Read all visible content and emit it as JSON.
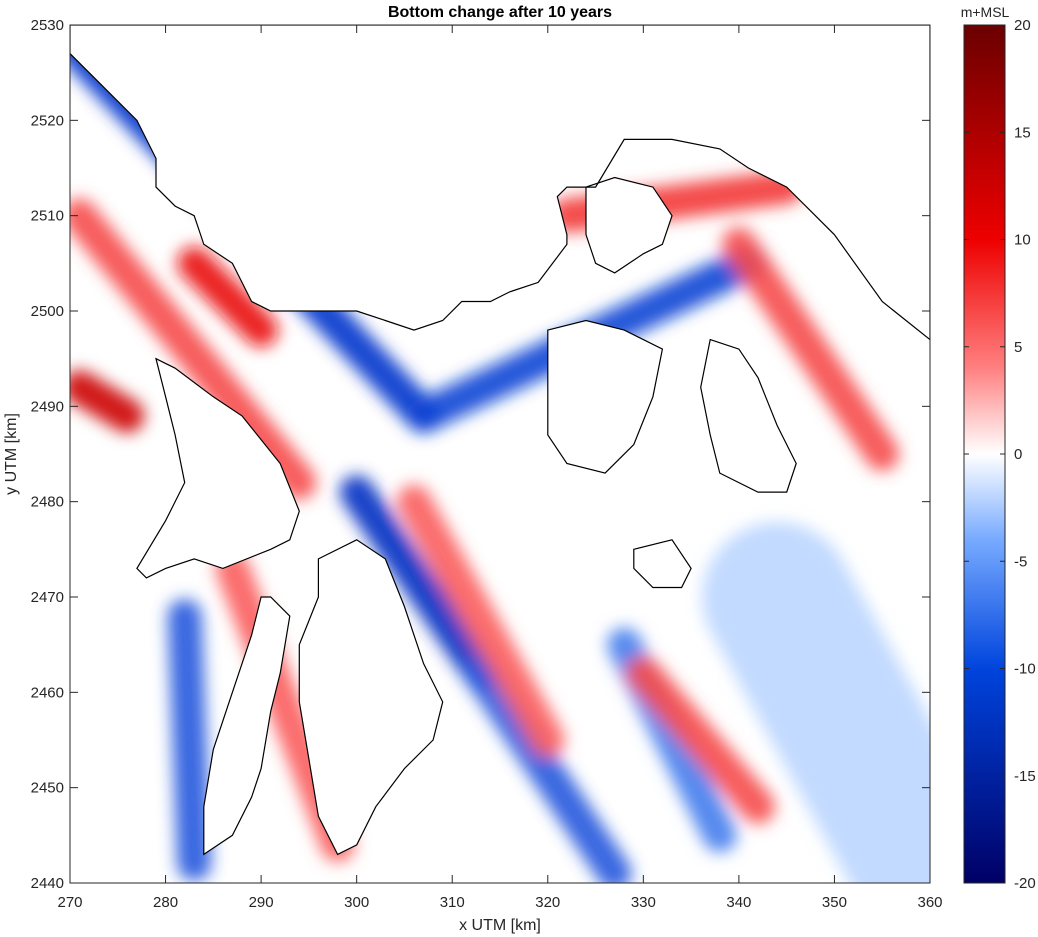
{
  "chart_data": {
    "type": "heatmap",
    "title": "Bottom change after 10 years",
    "xlabel": "x UTM [km]",
    "ylabel": "y UTM [km]",
    "xlim": [
      270,
      360
    ],
    "ylim": [
      2440,
      2530
    ],
    "xticks": [
      "270",
      "280",
      "290",
      "300",
      "310",
      "320",
      "330",
      "340",
      "350",
      "360"
    ],
    "yticks": [
      "2440",
      "2450",
      "2460",
      "2470",
      "2480",
      "2490",
      "2500",
      "2510",
      "2520",
      "2530"
    ],
    "colorbar": {
      "unit": "m+MSL",
      "range": [
        -20,
        20
      ],
      "ticks": [
        "-20",
        "-15",
        "-10",
        "-5",
        "0",
        "5",
        "10",
        "15",
        "20"
      ],
      "colors": {
        "min": "#000066",
        "low": "#0033cc",
        "mid_low": "#66a3ff",
        "zero": "#ffffff",
        "mid_high": "#ff7070",
        "high": "#e60000",
        "max": "#6b0000"
      }
    },
    "features": [
      {
        "kind": "deepening",
        "sign": -1,
        "x": [
          270,
          307
        ],
        "y": [
          2528,
          2489
        ],
        "magnitude": 10
      },
      {
        "kind": "deepening",
        "sign": -1,
        "x": [
          307,
          341
        ],
        "y": [
          2489,
          2505
        ],
        "magnitude": 9
      },
      {
        "kind": "deepening",
        "sign": -1,
        "x": [
          300,
          313
        ],
        "y": [
          2481,
          2462
        ],
        "magnitude": 11
      },
      {
        "kind": "deepening",
        "sign": -1,
        "x": [
          313,
          327
        ],
        "y": [
          2462,
          2441
        ],
        "magnitude": 8
      },
      {
        "kind": "deepening",
        "sign": -1,
        "x": [
          282,
          283
        ],
        "y": [
          2468,
          2442
        ],
        "magnitude": 8
      },
      {
        "kind": "deepening",
        "sign": -1,
        "x": [
          328,
          338
        ],
        "y": [
          2465,
          2445
        ],
        "magnitude": 6
      },
      {
        "kind": "accretion",
        "sign": 1,
        "x": [
          271,
          294
        ],
        "y": [
          2510,
          2482
        ],
        "magnitude": 6
      },
      {
        "kind": "accretion",
        "sign": 1,
        "x": [
          283,
          290
        ],
        "y": [
          2505,
          2498
        ],
        "magnitude": 9
      },
      {
        "kind": "accretion",
        "sign": 1,
        "x": [
          322,
          345
        ],
        "y": [
          2510,
          2513
        ],
        "magnitude": 7
      },
      {
        "kind": "accretion",
        "sign": 1,
        "x": [
          340,
          355
        ],
        "y": [
          2507,
          2485
        ],
        "magnitude": 6
      },
      {
        "kind": "accretion",
        "sign": 1,
        "x": [
          330,
          342
        ],
        "y": [
          2462,
          2448
        ],
        "magnitude": 6
      },
      {
        "kind": "accretion",
        "sign": 1,
        "x": [
          306,
          320
        ],
        "y": [
          2480,
          2455
        ],
        "magnitude": 5
      },
      {
        "kind": "accretion",
        "sign": 1,
        "x": [
          287,
          298
        ],
        "y": [
          2473,
          2444
        ],
        "magnitude": 5
      },
      {
        "kind": "accretion",
        "sign": 1,
        "x": [
          271,
          276
        ],
        "y": [
          2492,
          2489
        ],
        "magnitude": 12
      },
      {
        "kind": "shallow_change",
        "sign": -1,
        "x": [
          344,
          360
        ],
        "y": [
          2470,
          2441
        ],
        "magnitude": 2
      }
    ]
  }
}
